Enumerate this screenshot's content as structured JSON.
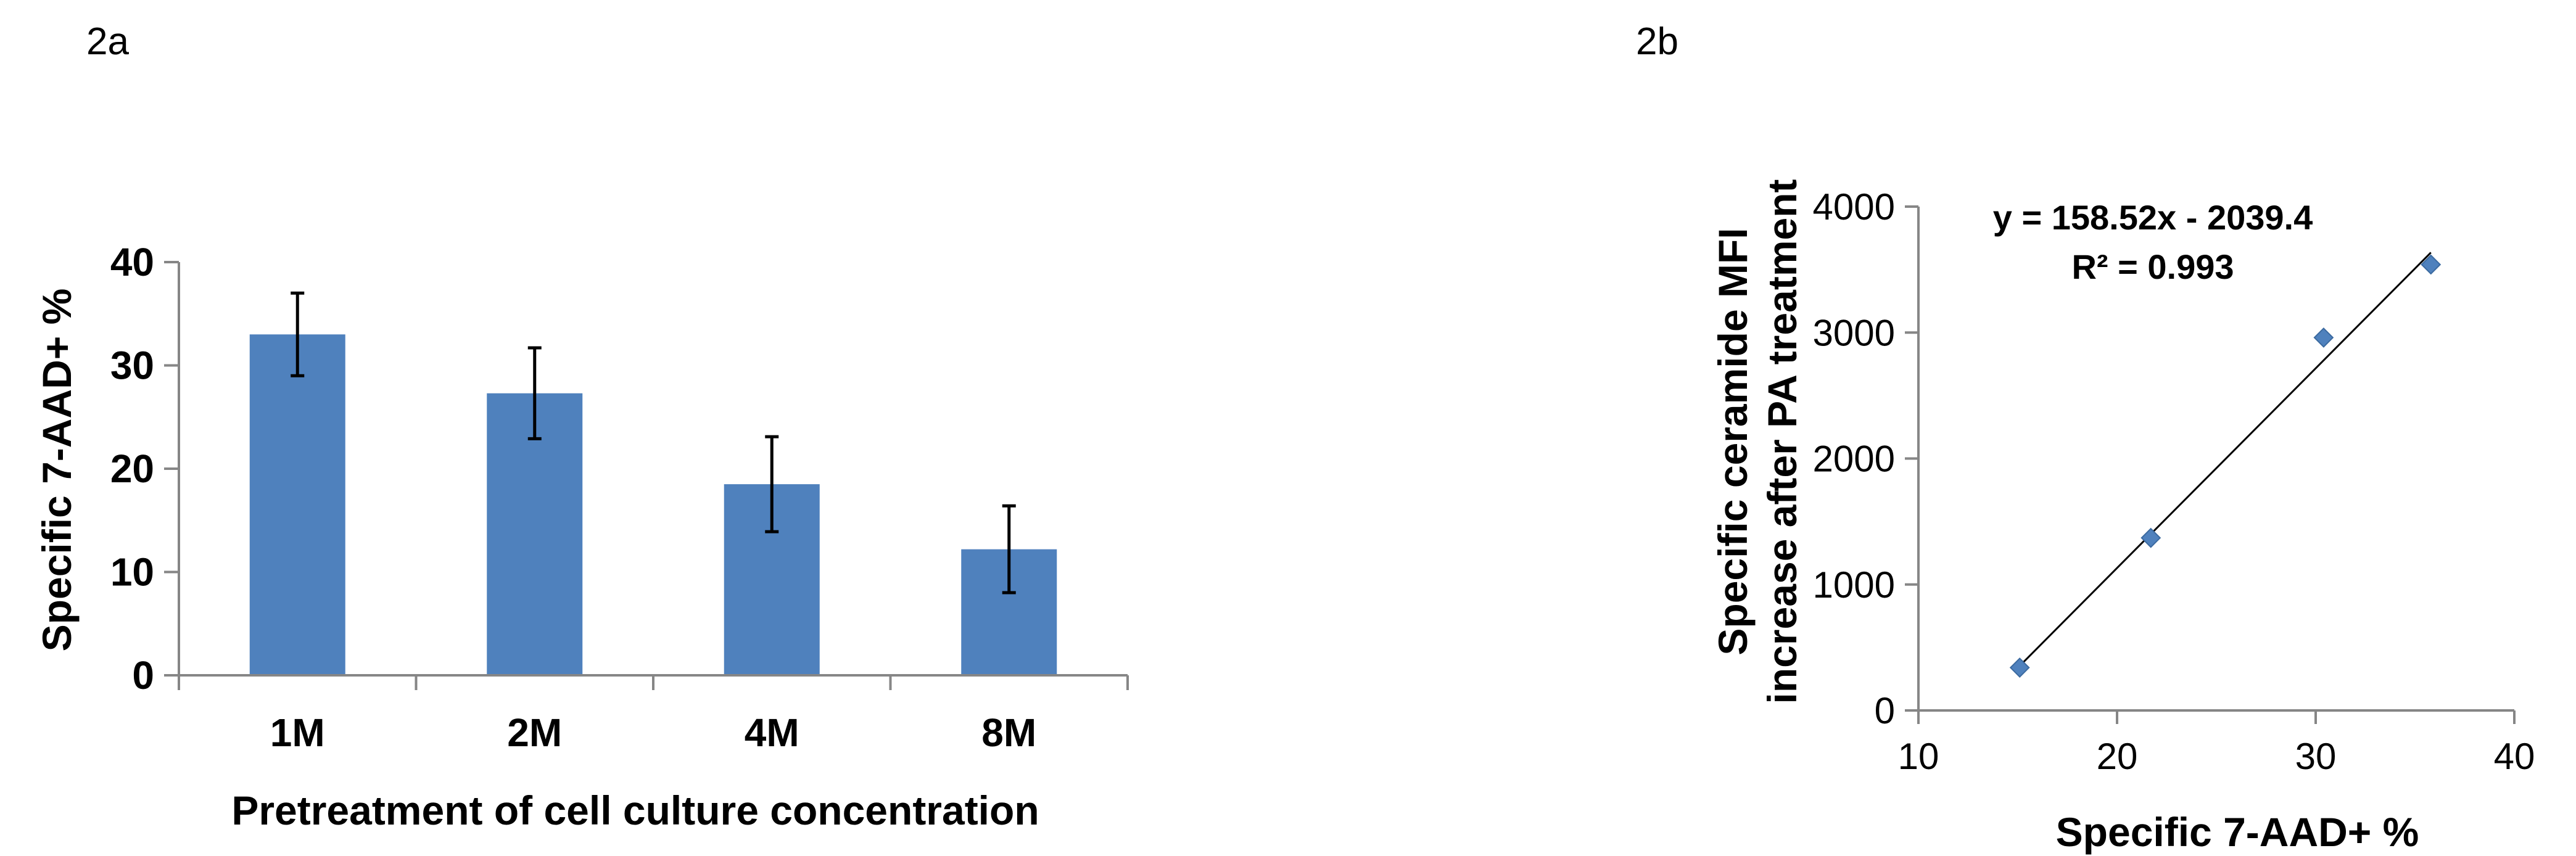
{
  "chart_data": [
    {
      "panel_label": "2a",
      "type": "bar",
      "categories": [
        "1M",
        "2M",
        "4M",
        "8M"
      ],
      "values": [
        33.0,
        27.3,
        18.5,
        12.2
      ],
      "error": [
        4.0,
        4.4,
        4.6,
        4.2
      ],
      "xlabel": "Pretreatment of cell culture concentration",
      "ylabel": "Specific 7-AAD+ %",
      "ylim": [
        0,
        40
      ],
      "yticks": [
        0,
        10,
        20,
        30,
        40
      ],
      "bar_color": "#4f81bd",
      "grid": false
    },
    {
      "panel_label": "2b",
      "type": "scatter",
      "x": [
        15.1,
        21.7,
        30.4,
        35.8
      ],
      "y": [
        340,
        1370,
        2960,
        3540
      ],
      "trendline": {
        "slope": 158.52,
        "intercept": -2039.4,
        "x_range": [
          15.1,
          35.8
        ]
      },
      "equation": "y = 158.52x - 2039.4",
      "r_squared": "R² = 0.993",
      "xlabel": "Specific 7-AAD+ %",
      "ylabel_line1": "Specific ceramide MFI",
      "ylabel_line2": "increase after PA treatment",
      "xlim": [
        10,
        40
      ],
      "ylim": [
        0,
        4000
      ],
      "xticks": [
        10,
        20,
        30,
        40
      ],
      "yticks": [
        0,
        1000,
        2000,
        3000,
        4000
      ],
      "marker_color": "#4f81bd",
      "grid": false
    }
  ]
}
